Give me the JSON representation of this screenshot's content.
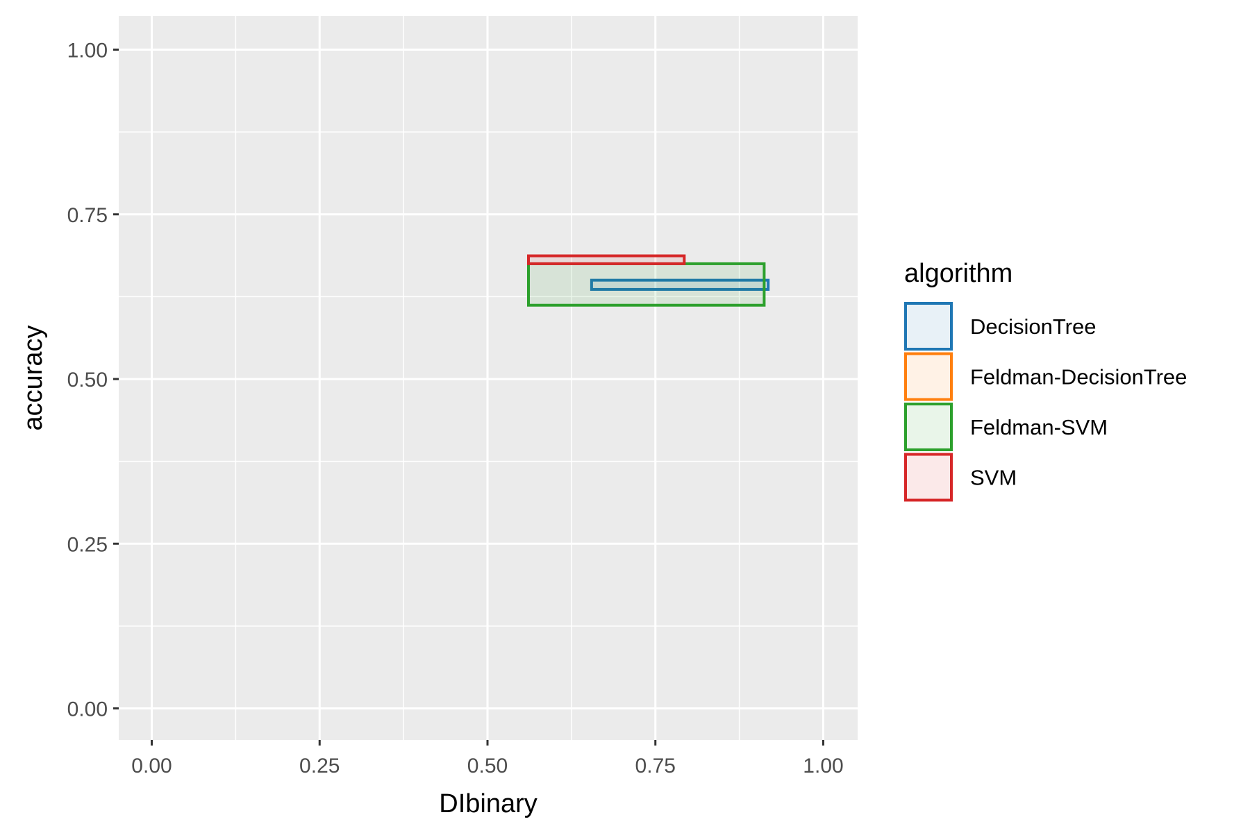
{
  "chart_data": {
    "type": "rect",
    "xlabel": "DIbinary",
    "ylabel": "accuracy",
    "xlim": [
      -0.05,
      1.05
    ],
    "ylim": [
      -0.05,
      1.05
    ],
    "x_ticks": [
      "0.00",
      "0.25",
      "0.50",
      "0.75",
      "1.00"
    ],
    "y_ticks": [
      "0.00",
      "0.25",
      "0.50",
      "0.75",
      "1.00"
    ],
    "grid": true,
    "panel_background": "#ebebeb",
    "legend": {
      "title": "algorithm",
      "position": "right"
    },
    "series": [
      {
        "name": "DecisionTree",
        "color": "#1f77b4",
        "xmin": 0.655,
        "xmax": 0.918,
        "ymin": 0.636,
        "ymax": 0.65
      },
      {
        "name": "Feldman-DecisionTree",
        "color": "#ff7f0e"
      },
      {
        "name": "Feldman-SVM",
        "color": "#2ca02c",
        "xmin": 0.561,
        "xmax": 0.912,
        "ymin": 0.612,
        "ymax": 0.675
      },
      {
        "name": "SVM",
        "color": "#d62728",
        "xmin": 0.561,
        "xmax": 0.793,
        "ymin": 0.675,
        "ymax": 0.687
      }
    ]
  }
}
